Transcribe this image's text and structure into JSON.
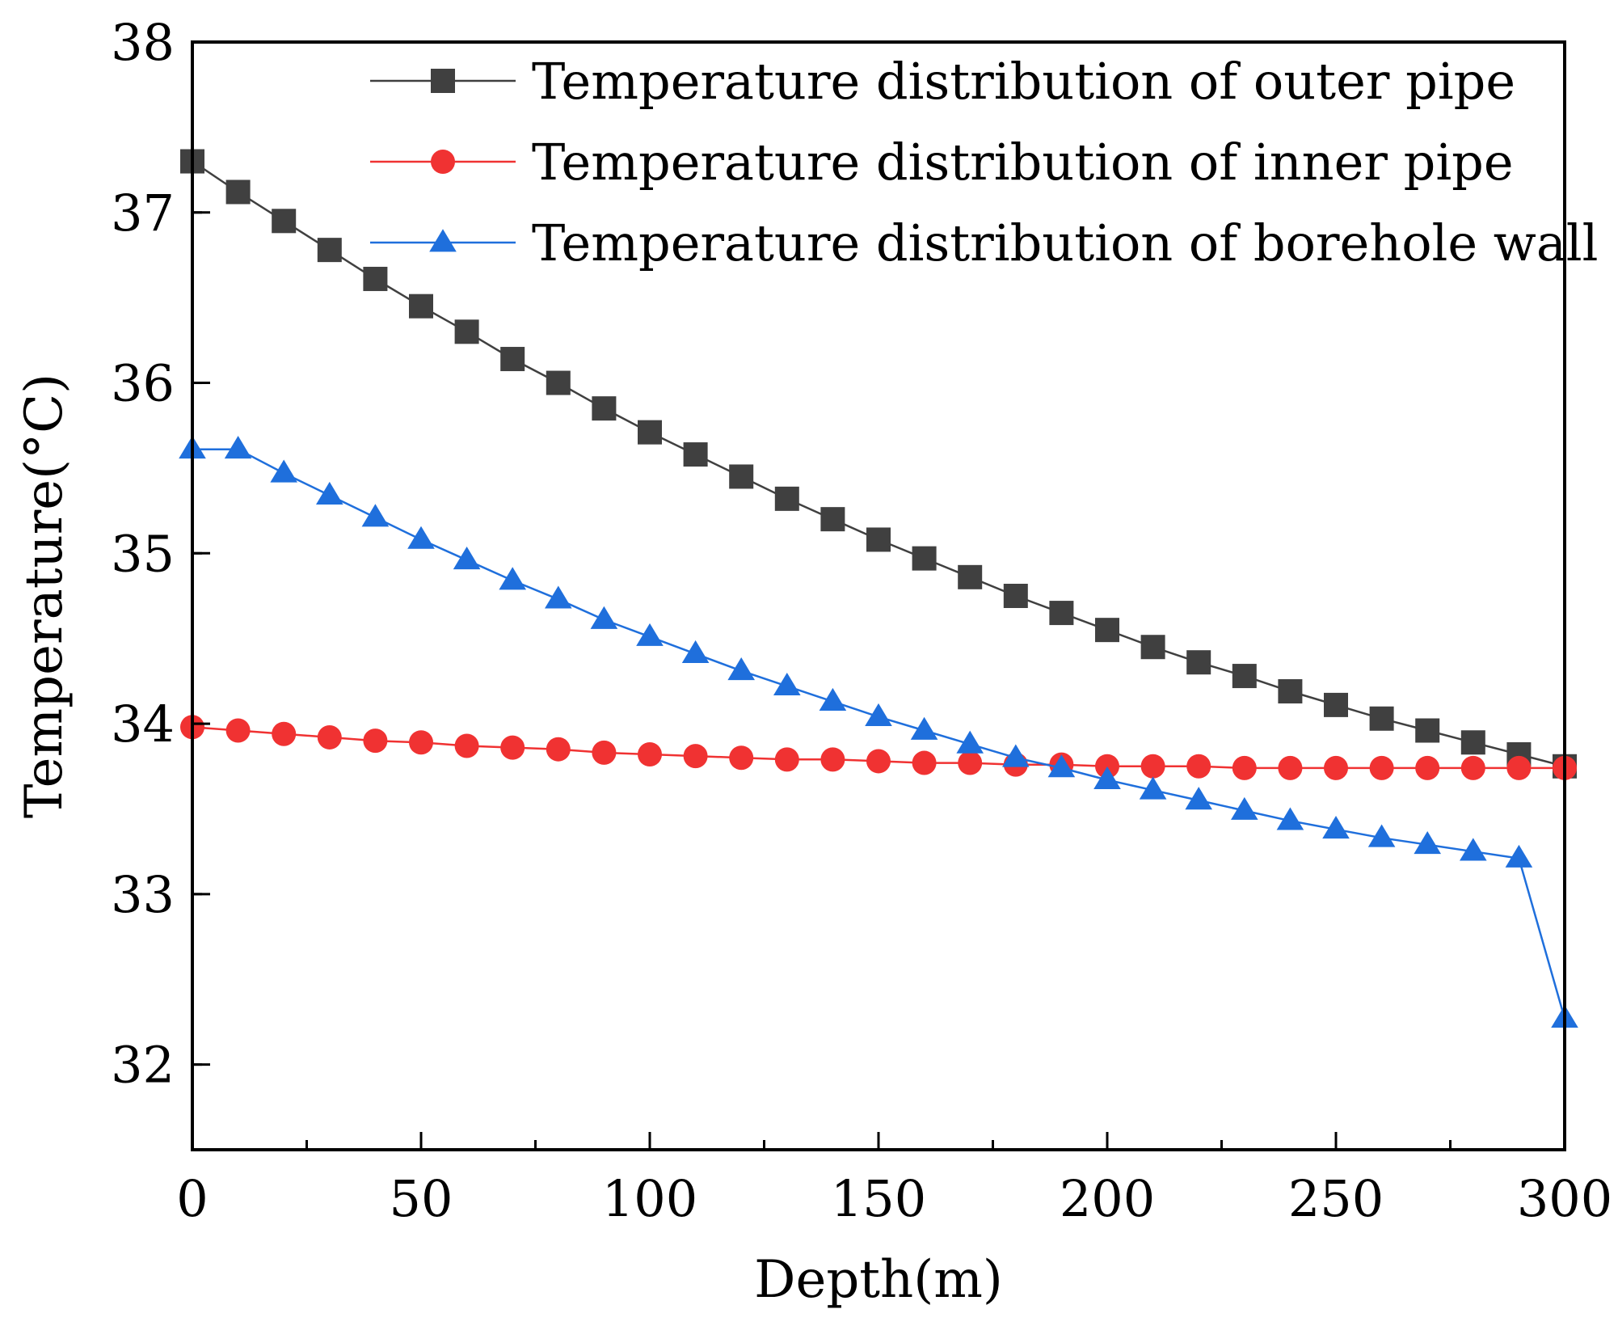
{
  "chart_data": {
    "type": "line",
    "title": "",
    "xlabel": "Depth(m)",
    "ylabel": "Temperature(°C)",
    "xlim": [
      0,
      300
    ],
    "ylim": [
      31.5,
      38
    ],
    "xticks": [
      0,
      50,
      100,
      150,
      200,
      250,
      300
    ],
    "xtick_labels": [
      "0",
      "50",
      "100",
      "150",
      "200",
      "250",
      "300"
    ],
    "yticks": [
      32,
      33,
      34,
      35,
      36,
      37,
      38
    ],
    "ytick_labels": [
      "32",
      "33",
      "34",
      "35",
      "36",
      "37",
      "38"
    ],
    "grid": false,
    "legend_position": "top-right",
    "x": [
      0,
      10,
      20,
      30,
      40,
      50,
      60,
      70,
      80,
      90,
      100,
      110,
      120,
      130,
      140,
      150,
      160,
      170,
      180,
      190,
      200,
      210,
      220,
      230,
      240,
      250,
      260,
      270,
      280,
      290,
      300
    ],
    "series": [
      {
        "name": "Temperature distribution of outer pipe",
        "marker": "square",
        "color": "#404040",
        "line_color": "#404040",
        "values": [
          37.3,
          37.12,
          36.95,
          36.78,
          36.61,
          36.45,
          36.3,
          36.14,
          36.0,
          35.85,
          35.71,
          35.58,
          35.45,
          35.32,
          35.2,
          35.08,
          34.97,
          34.86,
          34.75,
          34.65,
          34.55,
          34.45,
          34.36,
          34.28,
          34.19,
          34.11,
          34.03,
          33.96,
          33.89,
          33.82,
          33.75
        ]
      },
      {
        "name": "Temperature distribution of inner pipe",
        "marker": "circle",
        "color": "#f03232",
        "line_color": "#f03232",
        "values": [
          33.98,
          33.96,
          33.94,
          33.92,
          33.9,
          33.89,
          33.87,
          33.86,
          33.85,
          33.83,
          33.82,
          33.81,
          33.8,
          33.79,
          33.79,
          33.78,
          33.77,
          33.77,
          33.76,
          33.76,
          33.75,
          33.75,
          33.75,
          33.74,
          33.74,
          33.74,
          33.74,
          33.74,
          33.74,
          33.74,
          33.74
        ]
      },
      {
        "name": "Temperature distribution of borehole wall",
        "marker": "triangle",
        "color": "#1f6fdc",
        "line_color": "#1f6fdc",
        "values": [
          35.61,
          35.61,
          35.47,
          35.34,
          35.21,
          35.08,
          34.96,
          34.84,
          34.73,
          34.61,
          34.51,
          34.41,
          34.31,
          34.22,
          34.13,
          34.04,
          33.96,
          33.88,
          33.8,
          33.74,
          33.67,
          33.61,
          33.55,
          33.49,
          33.43,
          33.38,
          33.33,
          33.29,
          33.25,
          33.21,
          32.27
        ]
      }
    ]
  }
}
